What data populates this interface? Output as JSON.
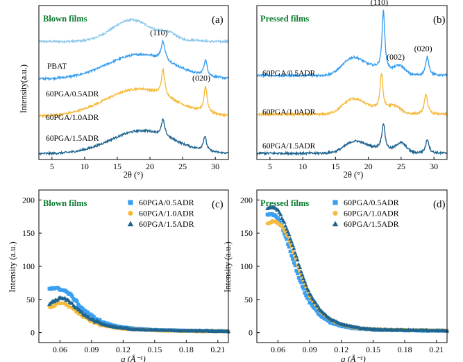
{
  "figure": {
    "colors": {
      "PBAT": "#8fc8ea",
      "60PGA/0.5ADR": "#3a9ff0",
      "60PGA/1.0ADR": "#f7bb3c",
      "60PGA/1.5ADR": "#1f6590",
      "title": "#0a7a2e"
    }
  },
  "chart_data": [
    {
      "id": "a",
      "type": "line",
      "panel_letter": "(a)",
      "title": "Blown films",
      "xlabel": "2θ (°)",
      "ylabel": "Intensity(a.u.)",
      "xlim": [
        3,
        32
      ],
      "xticks": [
        5,
        10,
        15,
        20,
        25,
        30
      ],
      "y_ticks_shown": false,
      "grid": false,
      "peak_labels": [
        {
          "text": "(110)",
          "x": 22,
          "series": "60PGA/0.5ADR"
        },
        {
          "text": "(020)",
          "x": 28.5,
          "series": "60PGA/1.0ADR"
        }
      ],
      "series": [
        {
          "name": "PBAT",
          "offset": 3,
          "peaks": [
            {
              "x": 17.2,
              "height": 0.75,
              "width": 3.0,
              "shape": "g"
            },
            {
              "x": 22.9,
              "height": 0.22,
              "width": 1.3,
              "shape": "g"
            },
            {
              "x": 27.0,
              "height": 0.05,
              "width": 1.0,
              "shape": "g"
            }
          ]
        },
        {
          "name": "60PGA/0.5ADR",
          "offset": 2,
          "peaks": [
            {
              "x": 18.5,
              "height": 0.85,
              "width": 5.0,
              "shape": "g"
            },
            {
              "x": 22.0,
              "height": 0.65,
              "width": 0.35,
              "shape": "l"
            },
            {
              "x": 28.5,
              "height": 0.55,
              "width": 0.3,
              "shape": "l"
            }
          ]
        },
        {
          "name": "60PGA/1.0ADR",
          "offset": 1,
          "peaks": [
            {
              "x": 18.3,
              "height": 0.95,
              "width": 5.2,
              "shape": "g"
            },
            {
              "x": 22.0,
              "height": 0.9,
              "width": 0.3,
              "shape": "l"
            },
            {
              "x": 28.5,
              "height": 0.9,
              "width": 0.3,
              "shape": "l"
            }
          ]
        },
        {
          "name": "60PGA/1.5ADR",
          "offset": 0,
          "peaks": [
            {
              "x": 18.8,
              "height": 0.8,
              "width": 4.8,
              "shape": "g"
            },
            {
              "x": 22.0,
              "height": 0.55,
              "width": 0.3,
              "shape": "l"
            },
            {
              "x": 28.4,
              "height": 0.5,
              "width": 0.3,
              "shape": "l"
            }
          ]
        }
      ]
    },
    {
      "id": "b",
      "type": "line",
      "panel_letter": "(b)",
      "title": "Pressed films",
      "xlabel": "2θ (°)",
      "ylabel": "",
      "xlim": [
        3,
        32
      ],
      "xticks": [
        5,
        10,
        15,
        20,
        25,
        30
      ],
      "y_ticks_shown": false,
      "grid": false,
      "peak_labels": [
        {
          "text": "(110)",
          "x": 22.3,
          "series": "60PGA/0.5ADR"
        },
        {
          "text": "(002)",
          "x": 24.8,
          "series": "60PGA/0.5ADR"
        },
        {
          "text": "(020)",
          "x": 29.0,
          "series": "60PGA/0.5ADR"
        }
      ],
      "series": [
        {
          "name": "60PGA/0.5ADR",
          "offset": 2,
          "peaks": [
            {
              "x": 17.5,
              "height": 0.45,
              "width": 1.5,
              "shape": "g"
            },
            {
              "x": 20.5,
              "height": 0.25,
              "width": 2.5,
              "shape": "g"
            },
            {
              "x": 22.3,
              "height": 1.9,
              "width": 0.25,
              "shape": "l"
            },
            {
              "x": 24.8,
              "height": 0.25,
              "width": 0.8,
              "shape": "g"
            },
            {
              "x": 29.0,
              "height": 0.6,
              "width": 0.3,
              "shape": "l"
            }
          ]
        },
        {
          "name": "60PGA/1.0ADR",
          "offset": 1,
          "peaks": [
            {
              "x": 17.5,
              "height": 0.4,
              "width": 1.5,
              "shape": "g"
            },
            {
              "x": 20.5,
              "height": 0.2,
              "width": 2.5,
              "shape": "g"
            },
            {
              "x": 22.0,
              "height": 1.15,
              "width": 0.25,
              "shape": "l"
            },
            {
              "x": 24.0,
              "height": 0.2,
              "width": 0.9,
              "shape": "g"
            },
            {
              "x": 28.8,
              "height": 0.65,
              "width": 0.3,
              "shape": "l"
            }
          ]
        },
        {
          "name": "60PGA/1.5ADR",
          "offset": 0,
          "peaks": [
            {
              "x": 17.8,
              "height": 0.3,
              "width": 1.5,
              "shape": "g"
            },
            {
              "x": 20.5,
              "height": 0.15,
              "width": 2.5,
              "shape": "g"
            },
            {
              "x": 22.3,
              "height": 0.85,
              "width": 0.3,
              "shape": "l"
            },
            {
              "x": 25.0,
              "height": 0.3,
              "width": 0.8,
              "shape": "g"
            },
            {
              "x": 29.0,
              "height": 0.45,
              "width": 0.3,
              "shape": "l"
            }
          ]
        }
      ]
    },
    {
      "id": "c",
      "type": "scatter",
      "panel_letter": "(c)",
      "title": "Blown films",
      "xlabel": "q (Å⁻¹)",
      "ylabel": "Intensity (a.u.)",
      "xlim": [
        0.04,
        0.22
      ],
      "ylim": [
        -15,
        215
      ],
      "xticks": [
        0.06,
        0.09,
        0.12,
        0.15,
        0.18,
        0.21
      ],
      "xtick_labels": [
        "0.06",
        "0.09",
        "0.12",
        "0.15",
        "0.18",
        "0.21"
      ],
      "yticks": [
        0,
        50,
        100,
        150,
        200
      ],
      "grid": false,
      "legend_placement": "top-right",
      "series": [
        {
          "name": "60PGA/0.5ADR",
          "marker": "square",
          "x": [
            0.05,
            0.055,
            0.06,
            0.065,
            0.07,
            0.075,
            0.08,
            0.09,
            0.1,
            0.11,
            0.12,
            0.13,
            0.14,
            0.15,
            0.16,
            0.18,
            0.2,
            0.22
          ],
          "y": [
            67,
            67,
            66,
            63,
            57,
            48,
            38,
            25,
            16,
            11,
            8,
            6,
            5,
            4,
            3.5,
            3,
            2.5,
            2
          ]
        },
        {
          "name": "60PGA/1.0ADR",
          "marker": "circle",
          "x": [
            0.05,
            0.055,
            0.06,
            0.065,
            0.07,
            0.075,
            0.08,
            0.09,
            0.1,
            0.11,
            0.12,
            0.13,
            0.14,
            0.15,
            0.16,
            0.18,
            0.2,
            0.22
          ],
          "y": [
            38,
            41,
            44,
            43,
            39,
            33,
            26,
            17,
            11,
            8,
            6,
            5,
            4,
            3.5,
            3,
            2.5,
            2,
            2
          ]
        },
        {
          "name": "60PGA/1.5ADR",
          "marker": "triangle",
          "x": [
            0.05,
            0.055,
            0.06,
            0.065,
            0.07,
            0.075,
            0.08,
            0.09,
            0.1,
            0.11,
            0.12,
            0.13,
            0.14,
            0.15,
            0.16,
            0.18,
            0.2,
            0.22
          ],
          "y": [
            44,
            48,
            52,
            51,
            46,
            39,
            31,
            20,
            13,
            9,
            7,
            5,
            4.5,
            4,
            3.5,
            3,
            2.5,
            2
          ]
        }
      ]
    },
    {
      "id": "d",
      "type": "scatter",
      "panel_letter": "(d)",
      "title": "Pressed films",
      "xlabel": "q (Å⁻¹)",
      "ylabel": "Intensity (a.u.)",
      "xlim": [
        0.04,
        0.22
      ],
      "ylim": [
        -15,
        215
      ],
      "xticks": [
        0.06,
        0.09,
        0.12,
        0.15,
        0.18,
        0.21
      ],
      "xtick_labels": [
        "0.06",
        "0.09",
        "0.12",
        "0.15",
        "0.18",
        "0.21"
      ],
      "yticks": [
        0,
        50,
        100,
        150,
        200
      ],
      "grid": false,
      "legend_placement": "top-right",
      "series": [
        {
          "name": "60PGA/0.5ADR",
          "marker": "square",
          "x": [
            0.05,
            0.055,
            0.06,
            0.065,
            0.07,
            0.075,
            0.08,
            0.085,
            0.09,
            0.1,
            0.11,
            0.12,
            0.13,
            0.14,
            0.15,
            0.16,
            0.18,
            0.2,
            0.22
          ],
          "y": [
            178,
            179,
            172,
            155,
            132,
            106,
            82,
            62,
            46,
            26,
            15,
            10,
            7,
            5.5,
            4.5,
            4,
            3.5,
            3,
            3
          ]
        },
        {
          "name": "60PGA/1.0ADR",
          "marker": "circle",
          "x": [
            0.05,
            0.055,
            0.06,
            0.065,
            0.07,
            0.075,
            0.08,
            0.085,
            0.09,
            0.1,
            0.11,
            0.12,
            0.13,
            0.14,
            0.15,
            0.16,
            0.18,
            0.2,
            0.22
          ],
          "y": [
            165,
            168,
            166,
            158,
            142,
            120,
            96,
            74,
            56,
            32,
            19,
            12,
            8,
            6,
            5,
            4.5,
            4,
            3.5,
            3
          ]
        },
        {
          "name": "60PGA/1.5ADR",
          "marker": "triangle",
          "x": [
            0.05,
            0.055,
            0.06,
            0.065,
            0.07,
            0.075,
            0.08,
            0.085,
            0.09,
            0.1,
            0.11,
            0.12,
            0.13,
            0.14,
            0.15,
            0.16,
            0.18,
            0.2,
            0.22
          ],
          "y": [
            188,
            190,
            184,
            170,
            150,
            126,
            101,
            78,
            59,
            34,
            20,
            13,
            9,
            6.5,
            5,
            4.5,
            4,
            3.5,
            3
          ]
        }
      ]
    }
  ]
}
